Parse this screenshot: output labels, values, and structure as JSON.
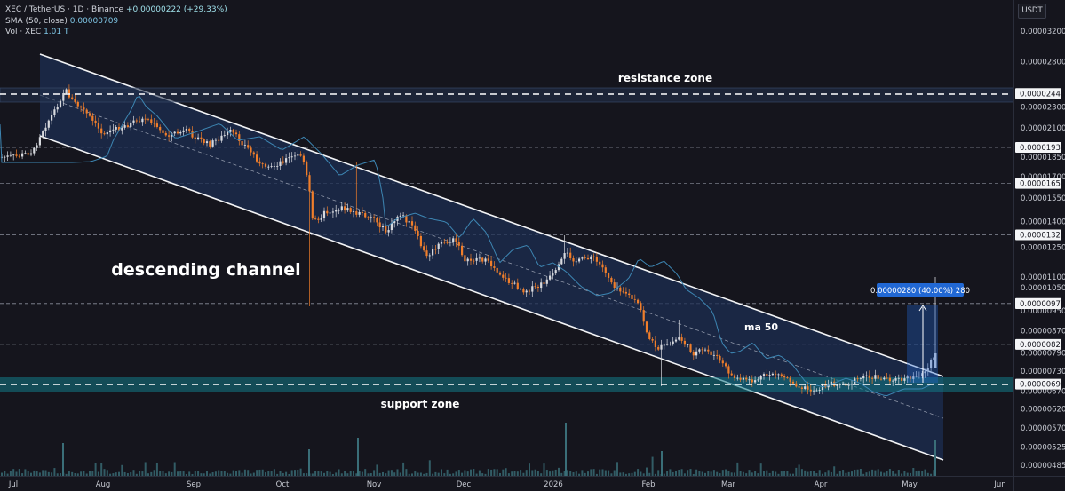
{
  "header": {
    "symbol": "XEC / TetherUS · 1D · Binance",
    "change": "+0.00000222 (+29.33%)",
    "sma_label": "SMA (50, close)",
    "sma_value": "0.00000709",
    "vol_label": "Vol · XEC",
    "vol_value": "1.01 T"
  },
  "currency_label": "USDT",
  "colors": {
    "background": "#15151d",
    "up_candle": "#d7d9de",
    "down_candle": "#f07e2b",
    "channel_fill": "#1c2e52",
    "support_fill": "#137a86",
    "ma_line": "#3d86b3",
    "measure": "#2168d4"
  },
  "chart_data": {
    "type": "candlestick",
    "x_ticks": [
      "Jul",
      "Aug",
      "Sep",
      "Oct",
      "Nov",
      "Dec",
      "2026",
      "Feb",
      "Mar",
      "Apr",
      "May",
      "Jun"
    ],
    "y_ticks": [
      "0.00003200",
      "0.00002800",
      "0.00002300",
      "0.00002100",
      "0.00001850",
      "0.00001700",
      "0.00001550",
      "0.00001400",
      "0.00001250",
      "0.00001100",
      "0.00001050",
      "0.00000950",
      "0.00000870",
      "0.00000790",
      "0.00000730",
      "0.00000670",
      "0.00000620",
      "0.00000570",
      "0.00000525",
      "0.00000485"
    ],
    "y_tick_values": [
      3.2e-05,
      2.8e-05,
      2.3e-05,
      2.1e-05,
      1.85e-05,
      1.7e-05,
      1.55e-05,
      1.4e-05,
      1.25e-05,
      1.1e-05,
      1.05e-05,
      9.5e-06,
      8.7e-06,
      7.9e-06,
      7.3e-06,
      6.7e-06,
      6.2e-06,
      5.7e-06,
      5.25e-06,
      4.85e-06
    ],
    "y_scale": "log",
    "highlighted_levels": [
      "0.00002440",
      "0.00001930",
      "0.00001650",
      "0.00001320",
      "0.00000980",
      "0.00000979",
      "0.00000820",
      "0.00000690"
    ],
    "highlighted_level_values": [
      2.44e-05,
      1.93e-05,
      1.65e-05,
      1.32e-05,
      9.8e-06,
      9.79e-06,
      8.2e-06,
      6.9e-06
    ],
    "price_range_label": "0.00000280 (40.00%) 280",
    "annotations": {
      "resistance": "resistance zone",
      "support": "support zone",
      "channel": "descending channel",
      "ma": "ma 50"
    }
  }
}
